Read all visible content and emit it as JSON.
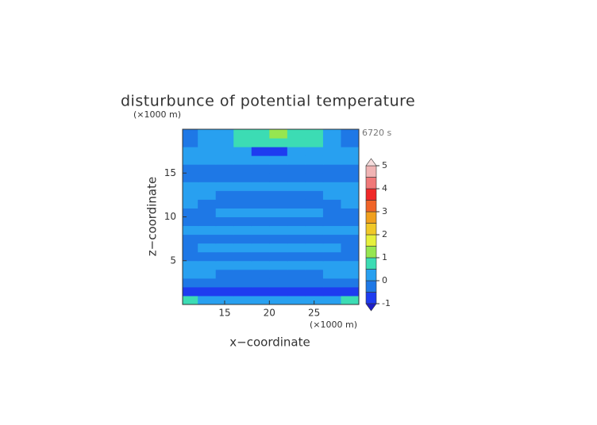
{
  "chart_data": {
    "type": "contour",
    "title": "disturbunce of potential temperature",
    "time_label": "6720 s",
    "x_label": "x−coordinate",
    "y_label": "z−coordinate",
    "x_unit": "(×1000 m)",
    "y_unit": "(×1000 m)",
    "xlim": [
      10.3,
      30
    ],
    "ylim": [
      0,
      20
    ],
    "xticks": [
      15,
      20,
      25
    ],
    "yticks": [
      5,
      10,
      15
    ],
    "x": [
      11,
      13,
      15,
      17,
      19,
      21,
      23,
      25,
      27,
      29
    ],
    "z_levels": [
      0.5,
      1.5,
      2.5,
      3.5,
      4.5,
      5.5,
      6.5,
      7.5,
      8.5,
      9.5,
      10.5,
      11.5,
      12.5,
      13.5,
      14.5,
      15.5,
      16.5,
      17.5,
      18.5,
      19.5
    ],
    "values": [
      [
        0.7,
        0.2,
        0.2,
        0.2,
        0.2,
        0.2,
        0.2,
        0.2,
        0.2,
        0.7
      ],
      [
        -0.6,
        -0.6,
        -0.6,
        -0.6,
        -0.6,
        -0.6,
        -0.6,
        -0.6,
        -0.6,
        -0.6
      ],
      [
        -0.2,
        -0.2,
        -0.2,
        -0.2,
        -0.2,
        -0.2,
        -0.2,
        -0.2,
        -0.2,
        -0.2
      ],
      [
        0.1,
        0.1,
        -0.1,
        -0.2,
        -0.2,
        -0.2,
        -0.2,
        -0.1,
        0.1,
        0.1
      ],
      [
        0.1,
        0.1,
        0.1,
        0.1,
        0.1,
        0.1,
        0.1,
        0.1,
        0.1,
        0.1
      ],
      [
        -0.2,
        -0.2,
        -0.2,
        -0.2,
        -0.2,
        -0.2,
        -0.2,
        -0.2,
        -0.2,
        -0.2
      ],
      [
        -0.2,
        0.1,
        0.1,
        0.1,
        0.1,
        0.1,
        0.1,
        0.1,
        0.1,
        -0.2
      ],
      [
        -0.2,
        -0.2,
        -0.2,
        -0.2,
        -0.2,
        -0.2,
        -0.2,
        -0.2,
        -0.2,
        -0.2
      ],
      [
        0.1,
        0.1,
        0.1,
        0.1,
        0.1,
        0.1,
        0.1,
        0.1,
        0.1,
        0.1
      ],
      [
        -0.2,
        -0.2,
        -0.2,
        -0.2,
        -0.2,
        -0.2,
        -0.2,
        -0.2,
        -0.2,
        -0.2
      ],
      [
        -0.2,
        -0.1,
        0.1,
        0.1,
        0.1,
        0.1,
        0.1,
        0.1,
        -0.1,
        -0.2
      ],
      [
        0.1,
        -0.1,
        -0.2,
        -0.3,
        -0.3,
        -0.3,
        -0.3,
        -0.2,
        -0.1,
        0.1
      ],
      [
        0.1,
        0.1,
        -0.1,
        -0.2,
        -0.2,
        -0.2,
        -0.2,
        -0.1,
        0.1,
        0.1
      ],
      [
        0.1,
        0.1,
        0.1,
        0.1,
        0.1,
        0.1,
        0.1,
        0.1,
        0.1,
        0.1
      ],
      [
        -0.2,
        -0.2,
        -0.2,
        -0.2,
        -0.2,
        -0.2,
        -0.2,
        -0.2,
        -0.2,
        -0.2
      ],
      [
        -0.2,
        -0.2,
        -0.2,
        -0.2,
        -0.2,
        -0.2,
        -0.2,
        -0.2,
        -0.2,
        -0.2
      ],
      [
        0.1,
        0.1,
        0.1,
        0.1,
        0.1,
        0.1,
        0.1,
        0.1,
        0.1,
        0.1
      ],
      [
        0.1,
        0.1,
        0.1,
        0.1,
        -0.6,
        -0.6,
        0.1,
        0.1,
        0.1,
        0.1
      ],
      [
        -0.2,
        0.1,
        0.1,
        0.7,
        0.8,
        0.8,
        0.7,
        0.7,
        0.1,
        -0.2
      ],
      [
        -0.2,
        0.1,
        0.1,
        0.7,
        0.9,
        1.3,
        0.9,
        0.7,
        0.1,
        -0.2
      ]
    ],
    "colorbar": {
      "levels": [
        -1,
        -0.5,
        0,
        0.5,
        1,
        1.5,
        2,
        2.5,
        3,
        3.5,
        4,
        4.5,
        5
      ],
      "colors": [
        "#1e1ec8",
        "#1e3cf0",
        "#1e78e6",
        "#28a0f0",
        "#3cdcb4",
        "#96e650",
        "#e6f03c",
        "#f0c828",
        "#f0a01e",
        "#f06428",
        "#f02828",
        "#f07878",
        "#f0b4b4",
        "#f5dcdc"
      ],
      "ticks": [
        -1,
        0,
        1,
        2,
        3,
        4,
        5
      ]
    }
  }
}
